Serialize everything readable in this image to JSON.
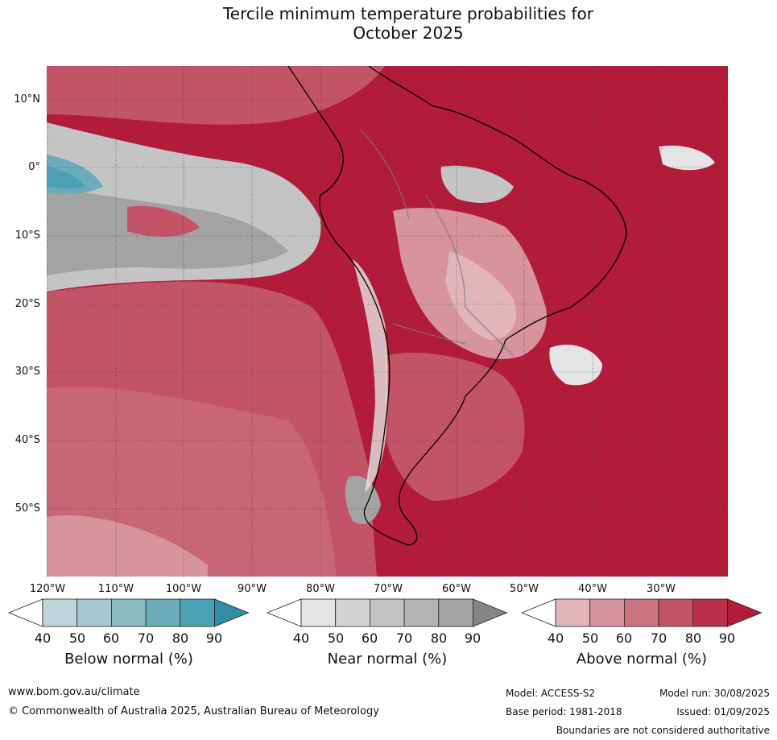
{
  "title_line1": "Tercile minimum temperature probabilities for",
  "title_line2": "October 2025",
  "lat_labels": [
    "10°N",
    "0°",
    "10°S",
    "20°S",
    "30°S",
    "40°S",
    "50°S"
  ],
  "lon_labels": [
    "120°W",
    "110°W",
    "100°W",
    "90°W",
    "80°W",
    "70°W",
    "60°W",
    "50°W",
    "40°W",
    "30°W"
  ],
  "colorbars": [
    {
      "label": "Below normal (%)",
      "ticks": [
        "40",
        "50",
        "60",
        "70",
        "80",
        "90"
      ],
      "colors": [
        "#ffffff",
        "#bfd5dc",
        "#a6c8d0",
        "#8cbac4",
        "#6cacba",
        "#4aa1b3",
        "#2f8ea3"
      ]
    },
    {
      "label": "Near normal (%)",
      "ticks": [
        "40",
        "50",
        "60",
        "70",
        "80",
        "90"
      ],
      "colors": [
        "#ffffff",
        "#e4e4e4",
        "#d4d4d4",
        "#c4c4c4",
        "#b4b4b4",
        "#a3a3a3",
        "#858585"
      ]
    },
    {
      "label": "Above normal (%)",
      "ticks": [
        "40",
        "50",
        "60",
        "70",
        "80",
        "90"
      ],
      "colors": [
        "#ffffff",
        "#e2b5bc",
        "#d7939e",
        "#cc7382",
        "#c35468",
        "#bb304c",
        "#b21b3a"
      ]
    }
  ],
  "footer": {
    "website": "www.bom.gov.au/climate",
    "copyright": "© Commonwealth of Australia 2025, Australian Bureau of Meteorology",
    "model": "Model: ACCESS-S2",
    "base_period": "Base period: 1981-2018",
    "model_run": "Model run: 30/08/2025",
    "issued": "Issued: 01/09/2025",
    "disclaimer": "Boundaries are not considered authoritative"
  }
}
